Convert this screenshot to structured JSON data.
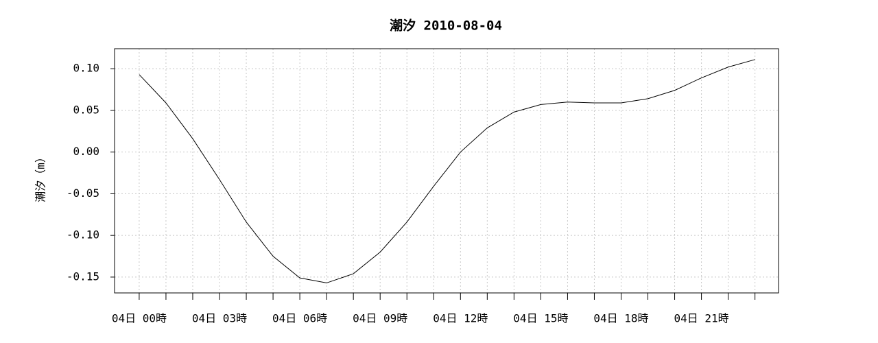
{
  "chart_data": {
    "type": "line",
    "title": "潮汐 2010-08-04",
    "y_label": "潮汐（m）",
    "categories": [
      "04日 00時",
      null,
      null,
      "04日 03時",
      null,
      null,
      "04日 06時",
      null,
      null,
      "04日 09時",
      null,
      null,
      "04日 12時",
      null,
      null,
      "04日 15時",
      null,
      null,
      "04日 18時",
      null,
      null,
      "04日 21時",
      null,
      null
    ],
    "series": [
      {
        "name": "潮汐",
        "color": "#000000",
        "values": [
          0.093,
          0.059,
          0.016,
          -0.033,
          -0.084,
          -0.125,
          -0.151,
          -0.157,
          -0.146,
          -0.12,
          -0.084,
          -0.041,
          0.0,
          0.029,
          0.048,
          0.057,
          0.06,
          0.059,
          0.059,
          0.064,
          0.074,
          0.089,
          0.102,
          0.111
        ]
      }
    ],
    "ylim": [
      -0.169,
      0.124
    ],
    "yticks": [
      {
        "value": -0.15,
        "label": "-0.15"
      },
      {
        "value": -0.1,
        "label": "-0.10"
      },
      -0.05,
      {
        "value": 0,
        "label": "0.00"
      },
      0.05,
      {
        "value": 0.1,
        "label": "0.10"
      }
    ],
    "grid": true
  }
}
